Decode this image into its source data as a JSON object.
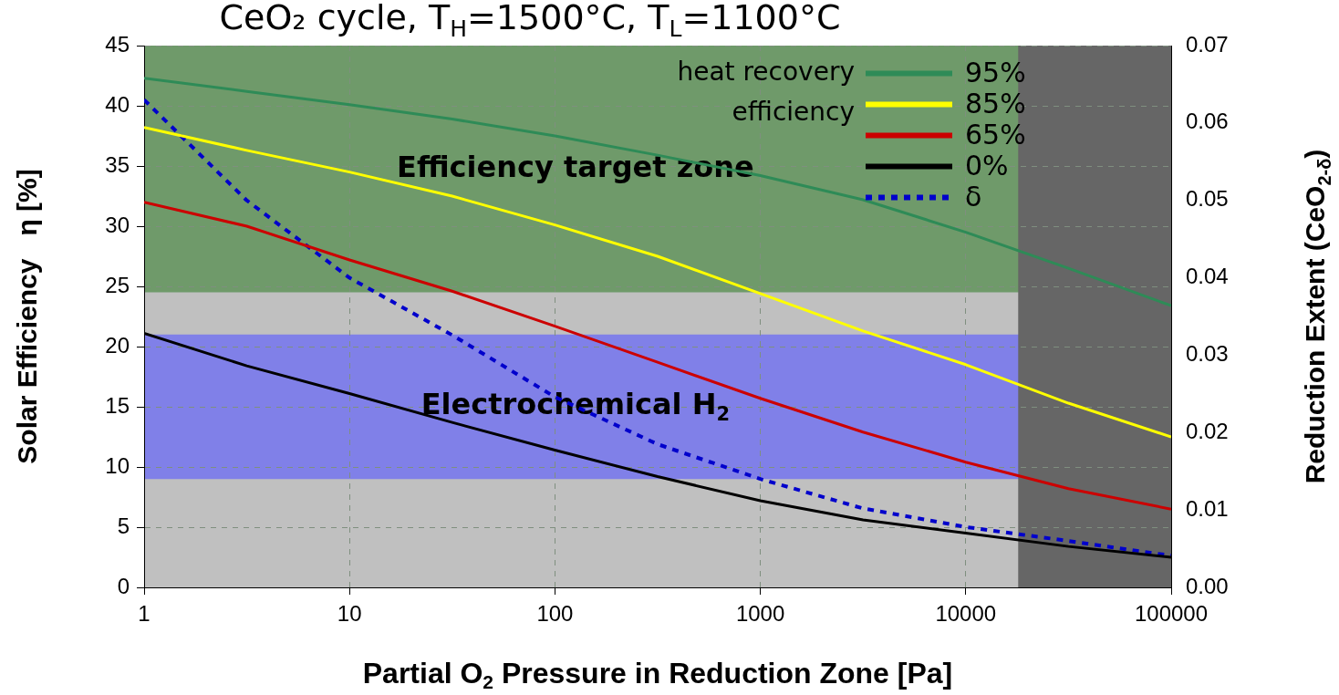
{
  "chart_data": {
    "type": "line",
    "title": "CeO₂ cycle, T$_{H}$=1500°C, T$_{L}$=1100°C",
    "xlabel": "Partial O$_{2}$ Pressure in Reduction Zone [Pa]",
    "ylabel": "Solar Efficiency   η [%]",
    "y2label": "Reduction Extent (CeO$_{2-δ}$)",
    "legend_title": "heat recovery efficiency",
    "legend": "top right",
    "grid": true,
    "log": "x",
    "marker": "none",
    "x": [
      1,
      3.16,
      10,
      31.6,
      100,
      316,
      1000,
      3162,
      10000,
      31623,
      100000
    ],
    "xlim": [
      1,
      100000
    ],
    "xticks": [
      1,
      10,
      100,
      1000,
      10000,
      100000
    ],
    "ylim": [
      0,
      45
    ],
    "yticks": [
      0,
      5,
      10,
      15,
      20,
      25,
      30,
      35,
      40,
      45
    ],
    "y2lim": [
      0,
      0.07
    ],
    "y2ticks": [
      {
        "value": 0,
        "label": "0.00"
      },
      {
        "value": 0.01,
        "label": "0.01"
      },
      {
        "value": 0.02,
        "label": "0.02"
      },
      {
        "value": 0.03,
        "label": "0.03"
      },
      {
        "value": 0.04,
        "label": "0.04"
      },
      {
        "value": 0.05,
        "label": "0.05"
      },
      {
        "value": 0.06,
        "label": "0.06"
      },
      {
        "value": 0.07,
        "label": "0.07"
      }
    ],
    "series": [
      {
        "name": "95%",
        "color": "#2e8b57",
        "line_style": "solid",
        "values": [
          42.3,
          41.2,
          40.1,
          38.9,
          37.5,
          35.9,
          34.2,
          32.2,
          29.5,
          26.5,
          23.4
        ]
      },
      {
        "name": "85%",
        "color": "#ffff00",
        "line_style": "solid",
        "values": [
          38.2,
          36.3,
          34.5,
          32.5,
          30.1,
          27.5,
          24.4,
          21.3,
          18.5,
          15.3,
          12.5
        ]
      },
      {
        "name": "65%",
        "color": "#cc0000",
        "line_style": "solid",
        "values": [
          32,
          30,
          27.2,
          24.6,
          21.7,
          18.7,
          15.7,
          12.9,
          10.4,
          8.2,
          6.5
        ]
      },
      {
        "name": "0%",
        "color": "#000000",
        "line_style": "solid",
        "values": [
          21.1,
          18.4,
          16.1,
          13.7,
          11.4,
          9.2,
          7.2,
          5.6,
          4.5,
          3.4,
          2.5
        ]
      },
      {
        "name": "δ",
        "color": "#0000cc",
        "line_style": "dotted",
        "axis": "y2",
        "values": [
          0.063,
          0.05,
          0.04,
          0.0326,
          0.0246,
          0.0185,
          0.014,
          0.0102,
          0.0078,
          0.006,
          0.0041
        ]
      }
    ],
    "bands": [
      {
        "axis": "y",
        "from": 0,
        "to": 45,
        "color": "#c0c0c0"
      },
      {
        "axis": "y",
        "from": 24.5,
        "to": 45,
        "color": "#6f9a6a",
        "label": "Efficiency target zone"
      },
      {
        "axis": "y",
        "from": 9,
        "to": 21,
        "color": "#8080e8",
        "label": "Electrochemical H$_{2}$"
      },
      {
        "axis": "x",
        "from": 18000,
        "to": 100000,
        "color": "#666666"
      }
    ]
  }
}
